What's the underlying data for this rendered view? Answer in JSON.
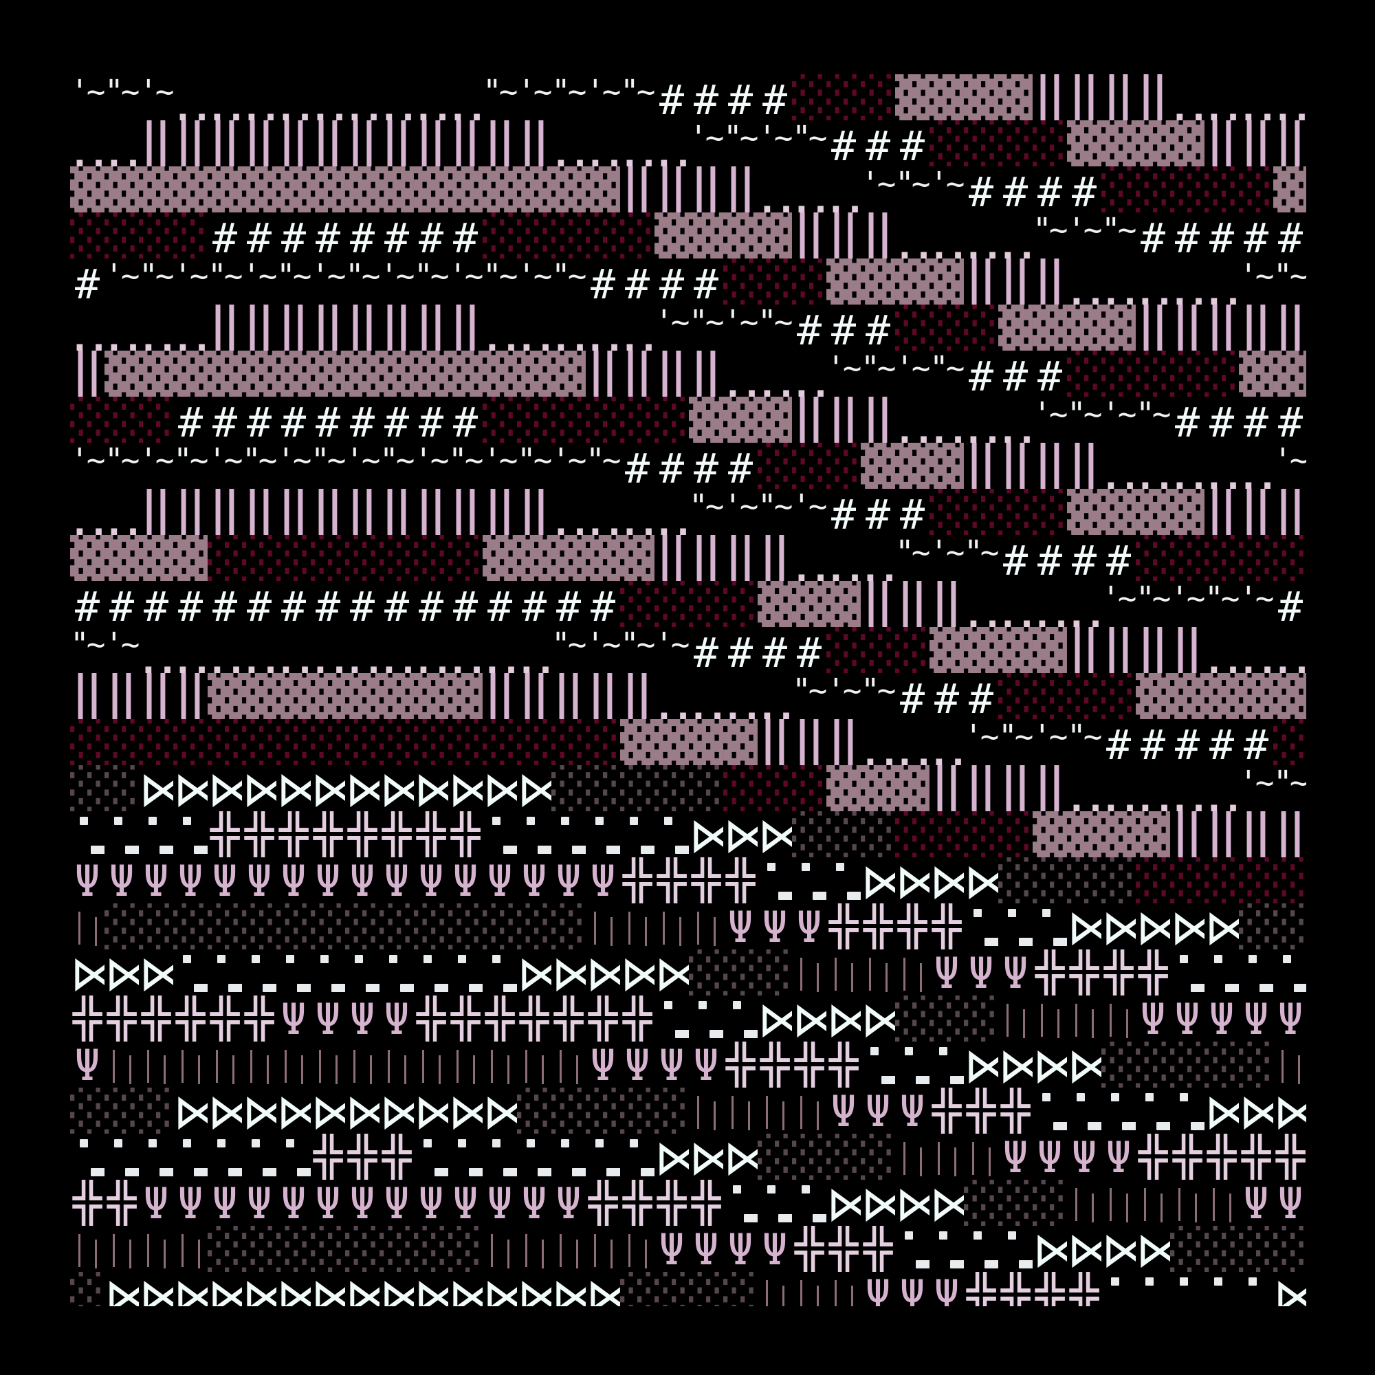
{
  "colors": {
    "background": "#000000",
    "wave": "#eef2f3",
    "dots": "#e2ccdb",
    "double_bar": "#d6b3cf",
    "dense_shade": "#9b7c89",
    "sparse_shade": "#5e0828",
    "hash": "#f2fafa",
    "grey_shade": "#56464e",
    "bowtie": "#f0fbfa",
    "cross": "#e4cfe0",
    "square": "#e8ecef",
    "trident": "#d5b2cd",
    "thin_line": "#8d6d7b"
  },
  "rows": [
    "~~~‥‥‥‥‥‥‥‥‥~~~~~####░░░▓▓▓▓‖‖‖‖‥‥‥‥",
    "‥‥‖‖‖‖‖‖‖‖‖‖‖‖‥‥‥‥~~~~###░░░░▓▓▓▓‖‖‖",
    "▓▓▓▓▓▓▓▓▓▓▓▓▓▓▓▓‖‖‖‖‥‥‥~~~####░░░░░▓",
    "░░░░########░░░░░▓▓▓▓‖‖‖‥‥‥‥~~~#####",
    "#~~~~~~~~~~~~~~####░░░▓▓▓▓‖‖‖‥‥‥‥‥~~",
    "‥‥‥‥‖‖‖‖‖‖‖‖‥‥‥‥‥~~~~###░░░▓▓▓▓‖‖‖‖‖",
    "‖▓▓▓▓▓▓▓▓▓▓▓▓▓▓‖‖‖‖‥‥‥~~~~###░░░░░▓▓",
    "░░░#########░░░░░░▓▓▓‖‖‖‥‥‥‥~~~~####",
    "~~~~~~~~~~~~~~~~####░░░▓▓▓‖‖‖‖‥‥‥‥‥~",
    "‥‥‖‖‖‖‖‖‖‖‖‖‖‖‥‥‥‥~~~~###░░░░▓▓▓▓‖‖‖",
    "▓▓▓▓░░░░░░░░▓▓▓▓▓‖‖‖‖‥‥‥~~~####░░░░░",
    "################░░░░▓▓▓‖‖‖‥‥‥‥~~~~~#",
    "~~‥‥‥‥‥‥‥‥‥‥‥‥~~~~####░░░▓▓▓▓‖‖‖‖‥‥‥",
    "‖‖‖‖▓▓▓▓▓▓▓▓‖‖‖‖‖‥‥‥‥~~~###░░░░▓▓▓▓▓",
    "░░░░░░░░░░░░░░░░▓▓▓▓‖‖‖‥‥‥~~~~#####░",
    "▒▒⋈⋈⋈⋈⋈⋈⋈⋈⋈⋈⋈⋈▒▒▒▒▒░░░▓▓▓‖‖‖‖‥‥‥‥‥~~",
    "▪▪▪▪╬╬╬╬╬╬╬╬▪▪▪▪▪▪⋈⋈⋈▒▒▒░░░░▓▓▓▓‖‖‖‖",
    "ΨΨΨΨΨΨΨΨΨΨΨΨΨΨΨΨ╬╬╬╬▪▪▪⋈⋈⋈⋈▒▒▒▒░░░░░",
    "│▒▒▒▒▒▒▒▒▒▒▒▒▒▒││││ΨΨΨ╬╬╬╬▪▪▪⋈⋈⋈⋈⋈▒▒",
    "⋈⋈⋈▪▪▪▪▪▪▪▪▪▪⋈⋈⋈⋈⋈▒▒▒││││ΨΨΨ╬╬╬╬▪▪▪▪",
    "╬╬╬╬╬╬ΨΨΨΨ╬╬╬╬╬╬╬▪▪▪⋈⋈⋈⋈▒▒▒││││ΨΨΨΨΨ",
    "Ψ││││││││││││││ΨΨΨΨ╬╬╬╬▪▪▪⋈⋈⋈⋈▒▒▒▒▒│",
    "▒▒▒⋈⋈⋈⋈⋈⋈⋈⋈⋈⋈▒▒▒▒▒││││ΨΨΨ╬╬╬▪▪▪▪▪⋈⋈⋈",
    "▪▪▪▪▪▪▪╬╬╬▪▪▪▪▪▪▪⋈⋈⋈▒▒▒▒│││ΨΨΨΨ╬╬╬╬╬",
    "╬╬ΨΨΨΨΨΨΨΨΨΨΨΨΨ╬╬╬╬▪▪▪⋈⋈⋈⋈▒▒▒│││││ΨΨ",
    "││││▒▒▒▒▒▒▒▒│││││ΨΨΨΨ╬╬╬▪▪▪▪⋈⋈⋈⋈▒▒▒▒",
    "▒⋈⋈⋈⋈⋈⋈⋈⋈⋈⋈⋈⋈⋈⋈⋈▒▒▒▒│││ΨΨΨ╬╬╬╬▪▪▪▪▪⋈"
  ]
}
